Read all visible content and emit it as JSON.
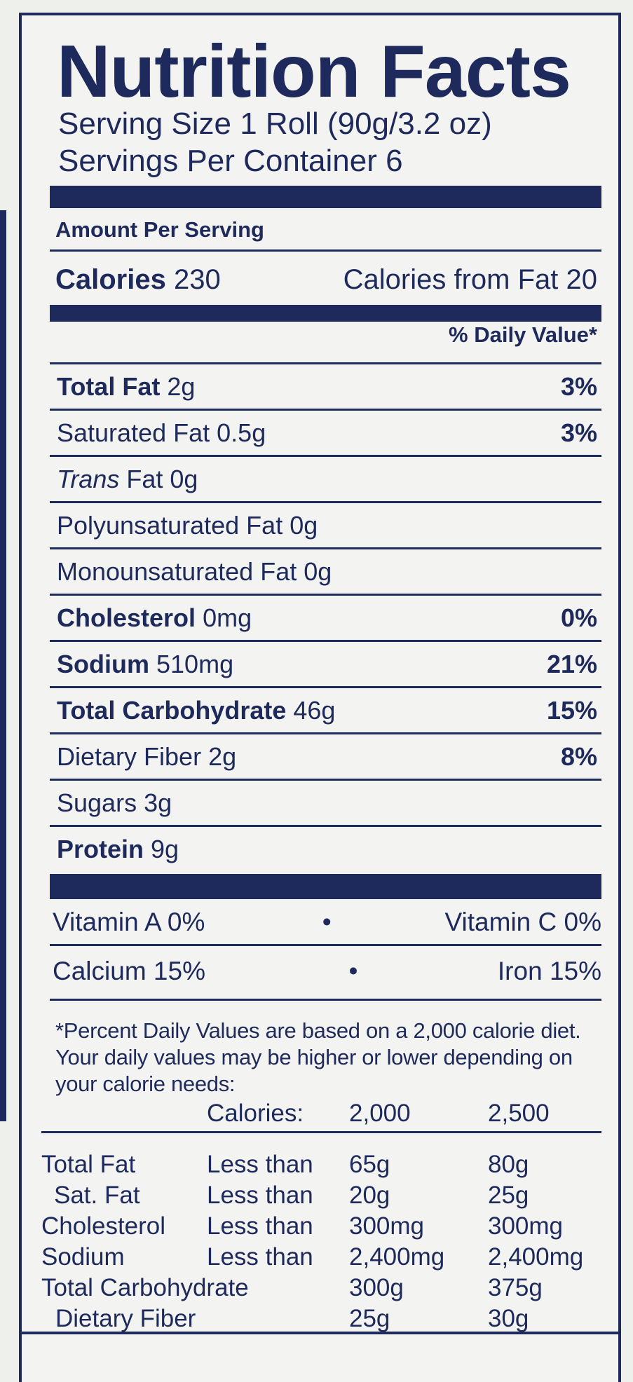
{
  "label": {
    "title": "Nutrition Facts",
    "serving_size": "Serving Size 1 Roll (90g/3.2 oz)",
    "servings_per_container": "Servings Per Container 6",
    "amount_per_serving": "Amount Per Serving",
    "calories_label": "Calories",
    "calories_value": "230",
    "calories_from_fat": "Calories from Fat 20",
    "daily_value_header": "% Daily Value*",
    "nutrients": [
      {
        "name": "Total Fat",
        "amount": "2g",
        "dv": "3%"
      },
      {
        "name": "Saturated Fat",
        "amount": "0.5g",
        "dv": "3%"
      },
      {
        "name": "Trans",
        "amount": "Fat 0g",
        "dv": ""
      },
      {
        "name": "Polyunsaturated Fat",
        "amount": "0g",
        "dv": ""
      },
      {
        "name": "Monounsaturated Fat",
        "amount": "0g",
        "dv": ""
      },
      {
        "name": "Cholesterol",
        "amount": "0mg",
        "dv": "0%"
      },
      {
        "name": "Sodium",
        "amount": "510mg",
        "dv": "21%"
      },
      {
        "name": "Total Carbohydrate",
        "amount": "46g",
        "dv": "15%"
      },
      {
        "name": "Dietary Fiber",
        "amount": "2g",
        "dv": "8%"
      },
      {
        "name": "Sugars",
        "amount": "3g",
        "dv": ""
      },
      {
        "name": "Protein",
        "amount": "9g",
        "dv": ""
      }
    ],
    "vitamins": [
      {
        "left": "Vitamin A 0%",
        "separator": "•",
        "right": "Vitamin C 0%"
      },
      {
        "left": "Calcium 15%",
        "separator": "•",
        "right": "Iron 15%"
      }
    ],
    "footnote": "*Percent Daily Values are based on a 2,000 calorie diet. Your daily values may be higher or lower depending on your calorie needs:",
    "reference_table": {
      "header": [
        "",
        "Calories:",
        "2,000",
        "2,500"
      ],
      "rows": [
        [
          "Total Fat",
          "Less than",
          "65g",
          "80g"
        ],
        [
          "Sat. Fat",
          "Less than",
          "20g",
          "25g"
        ],
        [
          "Cholesterol",
          "Less than",
          "300mg",
          "300mg"
        ],
        [
          "Sodium",
          "Less than",
          "2,400mg",
          "2,400mg"
        ],
        [
          "Total Carbohydrate",
          "",
          "300g",
          "375g"
        ],
        [
          "Dietary Fiber",
          "",
          "25g",
          "30g"
        ]
      ]
    },
    "colors": {
      "ink": "#1f2a5c",
      "paper": "#f3f4f1"
    }
  }
}
